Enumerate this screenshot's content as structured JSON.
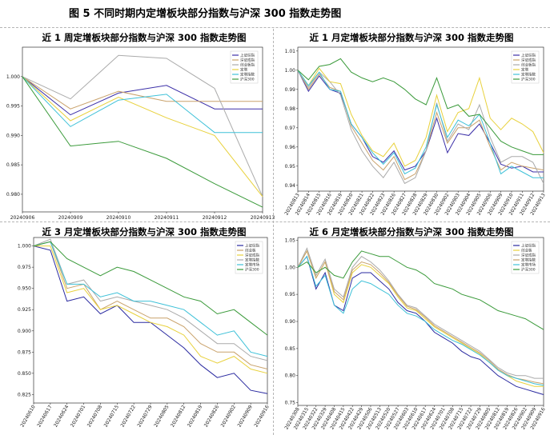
{
  "figure_title": "图 5 不同时期内定增板块部分指数与沪深 300 指数走势图",
  "chart_data": [
    {
      "id": "p1",
      "type": "line",
      "title": "近 1 周定增板块部分指数与沪深 300 指数走势图",
      "x": [
        "20240906",
        "20240909",
        "20240910",
        "20240911",
        "20240912",
        "20240913"
      ],
      "ylim": [
        0.977,
        1.005
      ],
      "yticks": [
        0.98,
        0.985,
        0.99,
        0.995,
        1.0
      ],
      "ytick_labels": [
        "0.980",
        "0.985",
        "0.990",
        "0.995",
        "1.000"
      ],
      "legend": "top-right",
      "series": [
        {
          "name": "上证综指",
          "color": "#3b2fa8",
          "values": [
            1.0,
            0.9935,
            0.9972,
            0.9985,
            0.9945,
            0.9945
          ]
        },
        {
          "name": "深证成指",
          "color": "#c9a26b",
          "values": [
            1.0,
            0.9945,
            0.9975,
            0.9958,
            0.9958,
            0.9958
          ]
        },
        {
          "name": "创业板指",
          "color": "#aaaaaa",
          "values": [
            1.0,
            0.9962,
            1.0036,
            1.0031,
            0.998,
            0.9796
          ]
        },
        {
          "name": "定增",
          "color": "#e8d13c",
          "values": [
            1.0,
            0.9925,
            0.9965,
            0.993,
            0.99,
            0.9796
          ]
        },
        {
          "name": "定增指数",
          "color": "#3ec1d8",
          "values": [
            1.0,
            0.9915,
            0.996,
            0.997,
            0.9905,
            0.9905
          ]
        },
        {
          "name": "沪深300",
          "color": "#3a9a3a",
          "values": [
            1.0,
            0.9882,
            0.989,
            0.9861,
            0.9818,
            0.9778
          ]
        }
      ]
    },
    {
      "id": "p2",
      "type": "line",
      "title": "近 1 月定增板块部分指数与沪深 300 指数走势图",
      "x": [
        "20240813",
        "20240814",
        "20240815",
        "20240816",
        "20240819",
        "20240820",
        "20240821",
        "20240822",
        "20240823",
        "20240826",
        "20240827",
        "20240828",
        "20240829",
        "20240830",
        "20240902",
        "20240903",
        "20240904",
        "20240905",
        "20240906",
        "20240909",
        "20240910",
        "20240911",
        "20240912",
        "20240913"
      ],
      "ylim": [
        0.937,
        1.012
      ],
      "yticks": [
        0.94,
        0.95,
        0.96,
        0.97,
        0.98,
        0.99,
        1.0,
        1.01
      ],
      "ytick_labels": [
        "0.94",
        "0.95",
        "0.96",
        "0.97",
        "0.98",
        "0.99",
        "1.00",
        "1.01"
      ],
      "legend": "top-right",
      "series": [
        {
          "name": "上证综指",
          "color": "#3b2fa8",
          "values": [
            1.0,
            0.989,
            0.997,
            0.99,
            0.988,
            0.972,
            0.965,
            0.955,
            0.952,
            0.958,
            0.948,
            0.95,
            0.958,
            0.975,
            0.957,
            0.967,
            0.966,
            0.972,
            0.962,
            0.951,
            0.949,
            0.95,
            0.947,
            0.947
          ]
        },
        {
          "name": "深证成指",
          "color": "#c9a26b",
          "values": [
            1.0,
            0.99,
            0.998,
            0.991,
            0.989,
            0.971,
            0.962,
            0.953,
            0.948,
            0.955,
            0.943,
            0.946,
            0.958,
            0.978,
            0.962,
            0.97,
            0.97,
            0.974,
            0.96,
            0.948,
            0.952,
            0.95,
            0.949,
            0.948
          ]
        },
        {
          "name": "创业板指",
          "color": "#aaaaaa",
          "values": [
            1.0,
            0.991,
            0.999,
            0.994,
            0.987,
            0.969,
            0.958,
            0.95,
            0.944,
            0.952,
            0.941,
            0.944,
            0.958,
            0.983,
            0.963,
            0.972,
            0.969,
            0.982,
            0.965,
            0.952,
            0.955,
            0.955,
            0.952,
            0.941
          ]
        },
        {
          "name": "定增",
          "color": "#e8d13c",
          "values": [
            1.0,
            0.992,
            1.001,
            0.994,
            0.993,
            0.977,
            0.966,
            0.958,
            0.955,
            0.962,
            0.95,
            0.953,
            0.965,
            0.987,
            0.968,
            0.978,
            0.98,
            0.996,
            0.975,
            0.969,
            0.975,
            0.972,
            0.968,
            0.957
          ]
        },
        {
          "name": "定增指数",
          "color": "#3ec1d8",
          "values": [
            1.0,
            0.992,
            0.999,
            0.99,
            0.989,
            0.972,
            0.965,
            0.957,
            0.951,
            0.957,
            0.946,
            0.949,
            0.96,
            0.982,
            0.965,
            0.974,
            0.971,
            0.977,
            0.962,
            0.946,
            0.95,
            0.947,
            0.944,
            0.944
          ]
        },
        {
          "name": "沪深300",
          "color": "#3a9a3a",
          "values": [
            1.0,
            0.995,
            1.002,
            1.003,
            1.006,
            0.999,
            0.996,
            0.994,
            0.996,
            0.994,
            0.99,
            0.985,
            0.982,
            0.996,
            0.98,
            0.982,
            0.976,
            0.977,
            0.97,
            0.963,
            0.96,
            0.958,
            0.956,
            0.956
          ]
        }
      ]
    },
    {
      "id": "p3",
      "type": "line",
      "title": "近 3 月定增板块部分指数与沪深 300 指数走势图",
      "x": [
        "20240610",
        "20240617",
        "20240624",
        "20240701",
        "20240708",
        "20240715",
        "20240722",
        "20240729",
        "20240805",
        "20240812",
        "20240819",
        "20240826",
        "20240902",
        "20240909",
        "20240916"
      ],
      "ylim": [
        0.815,
        1.01
      ],
      "yticks": [
        0.825,
        0.85,
        0.875,
        0.9,
        0.925,
        0.95,
        0.975,
        1.0
      ],
      "ytick_labels": [
        "0.825",
        "0.850",
        "0.875",
        "0.900",
        "0.925",
        "0.950",
        "0.975",
        "1.000"
      ],
      "legend": "top-right",
      "series": [
        {
          "name": "上证综指",
          "color": "#2a2aa0",
          "values": [
            1.0,
            0.995,
            0.935,
            0.94,
            0.92,
            0.93,
            0.91,
            0.91,
            0.895,
            0.88,
            0.86,
            0.845,
            0.85,
            0.83,
            0.826
          ]
        },
        {
          "name": "创业板",
          "color": "#c9a26b",
          "values": [
            1.0,
            1.005,
            0.95,
            0.955,
            0.925,
            0.935,
            0.925,
            0.915,
            0.915,
            0.905,
            0.885,
            0.875,
            0.875,
            0.86,
            0.855
          ]
        },
        {
          "name": "深证成指",
          "color": "#e8d13c",
          "values": [
            1.0,
            1.0,
            0.945,
            0.95,
            0.925,
            0.93,
            0.92,
            0.91,
            0.905,
            0.895,
            0.87,
            0.862,
            0.87,
            0.855,
            0.85
          ]
        },
        {
          "name": "定增指数",
          "color": "#aaaaaa",
          "values": [
            1.0,
            1.008,
            0.955,
            0.96,
            0.935,
            0.94,
            0.935,
            0.93,
            0.925,
            0.915,
            0.9,
            0.885,
            0.885,
            0.87,
            0.865
          ]
        },
        {
          "name": "定增市场",
          "color": "#3ec1d8",
          "values": [
            1.0,
            1.005,
            0.955,
            0.955,
            0.94,
            0.945,
            0.935,
            0.935,
            0.93,
            0.925,
            0.91,
            0.895,
            0.9,
            0.875,
            0.87
          ]
        },
        {
          "name": "沪深300",
          "color": "#3a9a3a",
          "values": [
            1.0,
            1.005,
            0.985,
            0.975,
            0.965,
            0.975,
            0.97,
            0.96,
            0.95,
            0.94,
            0.935,
            0.92,
            0.925,
            0.91,
            0.895
          ]
        }
      ]
    },
    {
      "id": "p4",
      "type": "line",
      "title": "近 6 月定增板块部分指数与沪深 300 指数走势图",
      "x": [
        "20240308",
        "20240315",
        "20240322",
        "20240329",
        "20240408",
        "20240415",
        "20240422",
        "20240429",
        "20240506",
        "20240513",
        "20240520",
        "20240527",
        "20240603",
        "20240610",
        "20240617",
        "20240624",
        "20240701",
        "20240708",
        "20240715",
        "20240722",
        "20240729",
        "20240805",
        "20240812",
        "20240819",
        "20240826",
        "20240902",
        "20240909",
        "20240916"
      ],
      "ylim": [
        0.745,
        1.055
      ],
      "yticks": [
        0.75,
        0.8,
        0.85,
        0.9,
        0.95,
        1.0,
        1.05
      ],
      "ytick_labels": [
        "0.75",
        "0.80",
        "0.85",
        "0.90",
        "0.95",
        "1.00",
        "1.05"
      ],
      "legend": "top-right",
      "series": [
        {
          "name": "上证综指",
          "color": "#2a2aa0",
          "values": [
            1.0,
            1.02,
            0.96,
            0.99,
            0.93,
            0.92,
            0.98,
            0.99,
            0.99,
            0.975,
            0.96,
            0.935,
            0.92,
            0.915,
            0.9,
            0.88,
            0.87,
            0.86,
            0.845,
            0.835,
            0.83,
            0.815,
            0.8,
            0.79,
            0.78,
            0.775,
            0.77,
            0.765
          ]
        },
        {
          "name": "创业板",
          "color": "#e8d13c",
          "values": [
            1.0,
            1.03,
            0.98,
            1.01,
            0.95,
            0.935,
            0.99,
            1.005,
            1.0,
            0.985,
            0.97,
            0.945,
            0.925,
            0.92,
            0.905,
            0.89,
            0.88,
            0.87,
            0.86,
            0.85,
            0.84,
            0.825,
            0.81,
            0.8,
            0.79,
            0.785,
            0.78,
            0.78
          ]
        },
        {
          "name": "深证成指",
          "color": "#aaaaaa",
          "values": [
            1.0,
            1.035,
            0.985,
            1.015,
            0.96,
            0.945,
            1.0,
            1.02,
            1.01,
            0.995,
            0.975,
            0.95,
            0.93,
            0.925,
            0.91,
            0.895,
            0.885,
            0.875,
            0.865,
            0.855,
            0.845,
            0.83,
            0.815,
            0.805,
            0.8,
            0.8,
            0.795,
            0.795
          ]
        },
        {
          "name": "定增指数",
          "color": "#c9a26b",
          "values": [
            1.0,
            1.03,
            0.98,
            1.01,
            0.955,
            0.94,
            0.995,
            1.01,
            1.005,
            0.99,
            0.972,
            0.948,
            0.928,
            0.922,
            0.908,
            0.892,
            0.882,
            0.872,
            0.862,
            0.852,
            0.842,
            0.828,
            0.812,
            0.802,
            0.795,
            0.792,
            0.788,
            0.785
          ]
        },
        {
          "name": "定增市场",
          "color": "#3ec1d8",
          "values": [
            1.0,
            1.02,
            0.965,
            0.985,
            0.93,
            0.915,
            0.96,
            0.975,
            0.97,
            0.96,
            0.95,
            0.93,
            0.915,
            0.91,
            0.9,
            0.885,
            0.875,
            0.865,
            0.858,
            0.848,
            0.838,
            0.825,
            0.81,
            0.8,
            0.795,
            0.79,
            0.785,
            0.782
          ]
        },
        {
          "name": "沪深300",
          "color": "#3a9a3a",
          "values": [
            1.0,
            1.01,
            0.99,
            1.0,
            0.985,
            0.98,
            1.01,
            1.03,
            1.025,
            1.02,
            1.02,
            1.01,
            1.0,
            0.995,
            0.985,
            0.97,
            0.965,
            0.96,
            0.95,
            0.945,
            0.94,
            0.93,
            0.92,
            0.915,
            0.91,
            0.905,
            0.895,
            0.885
          ]
        }
      ]
    }
  ]
}
